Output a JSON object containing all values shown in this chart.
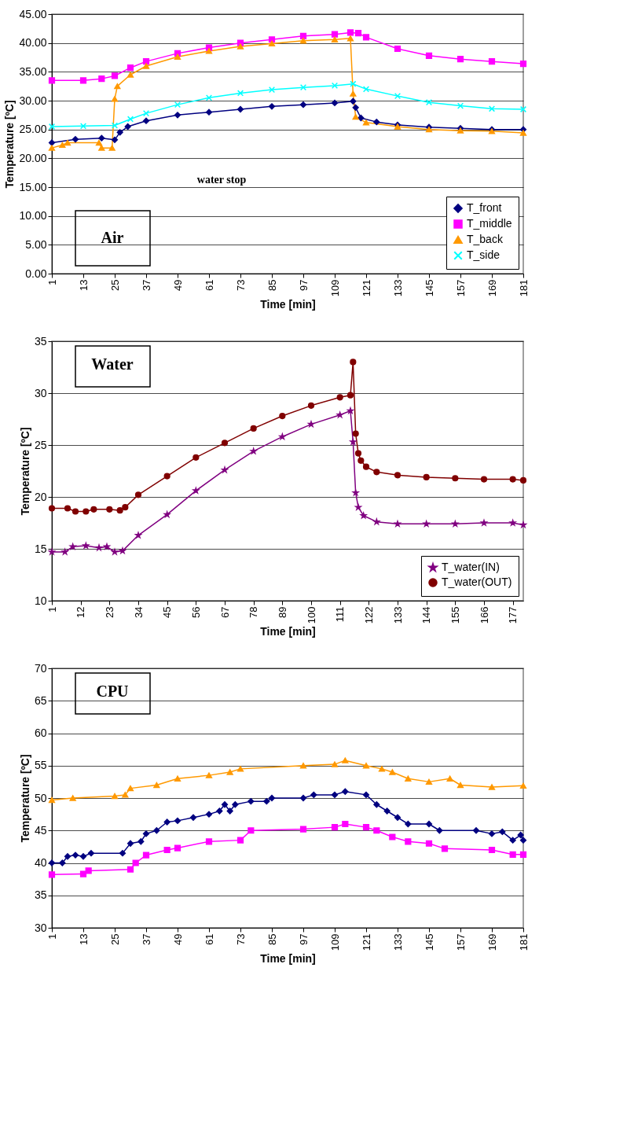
{
  "chart_data": [
    {
      "type": "line",
      "xlabel": "Time [min]",
      "ylabel": "Temperature [ºC]",
      "xlim": [
        1,
        181
      ],
      "xticks": [
        1,
        13,
        25,
        37,
        49,
        61,
        73,
        85,
        97,
        109,
        121,
        133,
        145,
        157,
        169,
        181
      ],
      "ylim": [
        0,
        45
      ],
      "yticks": [
        {
          "value": 0,
          "label": "0.00"
        },
        {
          "value": 5,
          "label": "5.00"
        },
        {
          "value": 10,
          "label": "10.00"
        },
        {
          "value": 15,
          "label": "15.00"
        },
        {
          "value": 20,
          "label": "20.00"
        },
        {
          "value": 25,
          "label": "25.00"
        },
        {
          "value": 30,
          "label": "30.00"
        },
        {
          "value": 35,
          "label": "35.00"
        },
        {
          "value": 40,
          "label": "40.00"
        },
        {
          "value": 45,
          "label": "45.00"
        }
      ],
      "grid": "y",
      "legend": "bottom right",
      "annotations": [
        "Air",
        "water stop"
      ],
      "series": [
        {
          "name": "T_front",
          "color": "#000080",
          "marker": "diamond",
          "x": [
            1,
            10,
            20,
            25,
            27,
            30,
            37,
            49,
            61,
            73,
            85,
            97,
            109,
            116,
            117,
            119,
            125,
            133,
            145,
            157,
            169,
            181
          ],
          "values": [
            22.7,
            23.3,
            23.5,
            23.2,
            24.5,
            25.5,
            26.5,
            27.5,
            28.0,
            28.5,
            29.0,
            29.3,
            29.6,
            29.9,
            28.8,
            27.0,
            26.3,
            25.8,
            25.4,
            25.2,
            25.0,
            25.0
          ]
        },
        {
          "name": "T_middle",
          "color": "#ff00ff",
          "marker": "square",
          "x": [
            1,
            13,
            20,
            25,
            31,
            37,
            49,
            61,
            73,
            85,
            97,
            109,
            115,
            118,
            121,
            133,
            145,
            157,
            169,
            181
          ],
          "values": [
            33.5,
            33.5,
            33.8,
            34.3,
            35.7,
            36.8,
            38.2,
            39.2,
            40.0,
            40.6,
            41.2,
            41.5,
            41.8,
            41.7,
            41.0,
            39.0,
            37.8,
            37.2,
            36.8,
            36.4
          ]
        },
        {
          "name": "T_back",
          "color": "#ff9900",
          "marker": "triangle",
          "x": [
            1,
            5,
            7,
            19,
            20,
            24,
            25,
            26,
            31,
            37,
            49,
            61,
            73,
            85,
            97,
            109,
            115,
            116,
            117,
            121,
            133,
            145,
            157,
            169,
            181
          ],
          "values": [
            21.8,
            22.3,
            22.7,
            22.7,
            21.8,
            21.8,
            30.3,
            32.5,
            34.5,
            36.0,
            37.6,
            38.6,
            39.4,
            39.9,
            40.4,
            40.6,
            40.8,
            31.2,
            27.2,
            26.2,
            25.5,
            25.0,
            24.8,
            24.7,
            24.4
          ]
        },
        {
          "name": "T_side",
          "color": "#00ffff",
          "marker": "cross",
          "x": [
            1,
            13,
            25,
            31,
            37,
            49,
            61,
            73,
            85,
            97,
            109,
            116,
            121,
            133,
            145,
            157,
            169,
            181
          ],
          "values": [
            25.5,
            25.6,
            25.7,
            26.8,
            27.8,
            29.3,
            30.5,
            31.3,
            31.9,
            32.3,
            32.6,
            32.9,
            32.0,
            30.8,
            29.7,
            29.1,
            28.6,
            28.5
          ]
        }
      ]
    },
    {
      "type": "line",
      "xlabel": "Time [min]",
      "ylabel": "Temperature [ºC]",
      "xlim": [
        1,
        181
      ],
      "xticks": [
        1,
        12,
        23,
        34,
        45,
        56,
        67,
        78,
        89,
        100,
        111,
        122,
        133,
        144,
        155,
        166,
        177
      ],
      "ylim": [
        10,
        35
      ],
      "yticks": [
        10,
        15,
        20,
        25,
        30,
        35
      ],
      "grid": "y",
      "legend": "bottom right",
      "annotations": [
        "Water"
      ],
      "series": [
        {
          "name": "T_water(IN)",
          "color": "#800080",
          "marker": "star",
          "x": [
            1,
            6,
            9,
            14,
            19,
            22,
            25,
            28,
            34,
            45,
            56,
            67,
            78,
            89,
            100,
            111,
            115,
            116,
            117,
            118,
            120,
            125,
            133,
            144,
            155,
            166,
            177,
            181
          ],
          "values": [
            14.7,
            14.7,
            15.2,
            15.3,
            15.1,
            15.2,
            14.7,
            14.8,
            16.3,
            18.3,
            20.6,
            22.6,
            24.4,
            25.8,
            27.0,
            27.9,
            28.3,
            25.3,
            20.4,
            19.0,
            18.2,
            17.6,
            17.4,
            17.4,
            17.4,
            17.5,
            17.5,
            17.3
          ]
        },
        {
          "name": "T_water(OUT)",
          "color": "#800000",
          "marker": "circle",
          "x": [
            1,
            7,
            10,
            14,
            17,
            23,
            27,
            29,
            34,
            45,
            56,
            67,
            78,
            89,
            100,
            111,
            115,
            116,
            117,
            118,
            119,
            121,
            125,
            133,
            144,
            155,
            166,
            177,
            181
          ],
          "values": [
            18.9,
            18.9,
            18.6,
            18.6,
            18.8,
            18.8,
            18.7,
            19.0,
            20.2,
            22.0,
            23.8,
            25.2,
            26.6,
            27.8,
            28.8,
            29.6,
            29.8,
            33.0,
            26.1,
            24.2,
            23.5,
            22.9,
            22.4,
            22.1,
            21.9,
            21.8,
            21.7,
            21.7,
            21.6
          ]
        }
      ]
    },
    {
      "type": "line",
      "xlabel": "Time [min]",
      "ylabel": "Temperature [ºC]",
      "xlim": [
        1,
        181
      ],
      "xticks": [
        1,
        13,
        25,
        37,
        49,
        61,
        73,
        85,
        97,
        109,
        121,
        133,
        145,
        157,
        169,
        181
      ],
      "ylim": [
        30,
        70
      ],
      "yticks": [
        30,
        35,
        40,
        45,
        50,
        55,
        60,
        65,
        70
      ],
      "grid": "y",
      "annotations": [
        "CPU"
      ],
      "series": [
        {
          "color": "#000080",
          "marker": "diamond",
          "x": [
            1,
            5,
            7,
            10,
            13,
            16,
            28,
            31,
            35,
            37,
            41,
            45,
            49,
            55,
            61,
            65,
            67,
            69,
            71,
            77,
            83,
            85,
            97,
            101,
            109,
            113,
            121,
            125,
            129,
            133,
            137,
            145,
            149,
            163,
            169,
            173,
            177,
            180,
            181
          ],
          "values": [
            40,
            40,
            41,
            41.2,
            41,
            41.5,
            41.5,
            43,
            43.3,
            44.5,
            45,
            46.3,
            46.5,
            47,
            47.5,
            48,
            49,
            48,
            49,
            49.5,
            49.5,
            50,
            50,
            50.5,
            50.5,
            51,
            50.5,
            49,
            48,
            47,
            46,
            46,
            45,
            45,
            44.5,
            44.8,
            43.5,
            44.3,
            43.5
          ]
        },
        {
          "color": "#ff00ff",
          "marker": "square",
          "x": [
            1,
            13,
            15,
            31,
            33,
            37,
            45,
            49,
            61,
            73,
            77,
            97,
            109,
            113,
            121,
            125,
            131,
            137,
            145,
            151,
            169,
            177,
            181
          ],
          "values": [
            38.2,
            38.3,
            38.8,
            39,
            40,
            41.2,
            42,
            42.3,
            43.3,
            43.5,
            45,
            45.2,
            45.5,
            46,
            45.5,
            45,
            44,
            43.3,
            43,
            42.2,
            42,
            41.3,
            41.3
          ]
        },
        {
          "color": "#ff9900",
          "marker": "triangle",
          "x": [
            1,
            9,
            25,
            29,
            31,
            41,
            49,
            61,
            69,
            73,
            97,
            109,
            113,
            121,
            127,
            131,
            137,
            145,
            153,
            157,
            169,
            181
          ],
          "values": [
            49.7,
            50,
            50.3,
            50.5,
            51.5,
            52,
            53,
            53.5,
            54,
            54.5,
            55,
            55.2,
            55.8,
            55,
            54.5,
            54,
            53,
            52.5,
            53,
            52,
            51.7,
            51.9
          ]
        }
      ]
    }
  ]
}
